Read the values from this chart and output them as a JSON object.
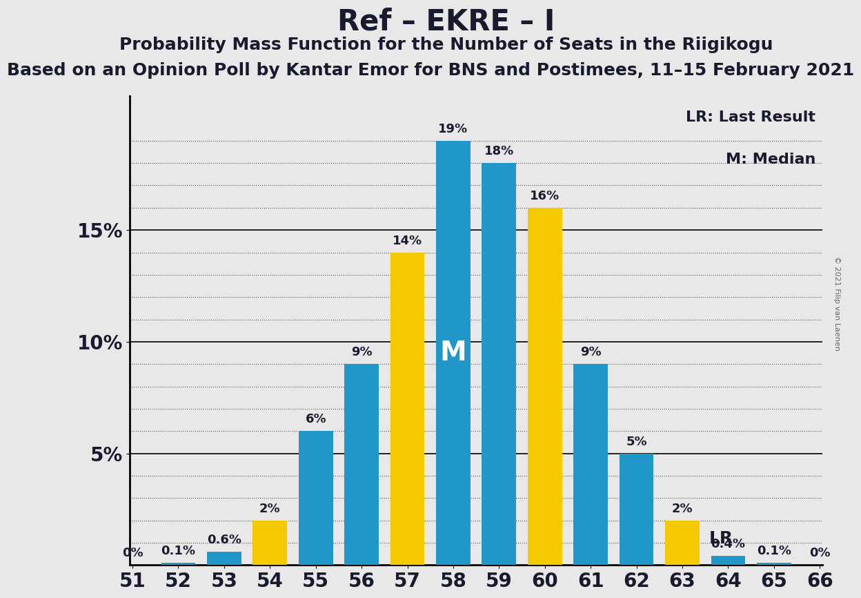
{
  "title": "Ref – EKRE – I",
  "subtitle1": "Probability Mass Function for the Number of Seats in the Riigikogu",
  "subtitle2": "Based on an Opinion Poll by Kantar Emor for BNS and Postimees, 11–15 February 2021",
  "copyright": "© 2021 Filip van Laenen",
  "seats": [
    51,
    52,
    53,
    54,
    55,
    56,
    57,
    58,
    59,
    60,
    61,
    62,
    63,
    64,
    65,
    66
  ],
  "blue_values": [
    0.0,
    0.1,
    0.6,
    0.0,
    6.0,
    9.0,
    0.0,
    19.0,
    18.0,
    0.0,
    9.0,
    5.0,
    0.0,
    0.4,
    0.1,
    0.0
  ],
  "yellow_values": [
    0.0,
    0.0,
    0.0,
    2.0,
    0.0,
    0.0,
    14.0,
    0.0,
    0.0,
    16.0,
    0.0,
    0.0,
    2.0,
    0.0,
    0.0,
    0.0
  ],
  "blue_labels": [
    "0%",
    "0.1%",
    "0.6%",
    "",
    "6%",
    "9%",
    "",
    "19%",
    "18%",
    "",
    "9%",
    "5%",
    "",
    "0.4%",
    "0.1%",
    "0%"
  ],
  "yellow_labels": [
    "",
    "",
    "",
    "2%",
    "",
    "",
    "14%",
    "",
    "",
    "16%",
    "",
    "",
    "2%",
    "",
    "",
    ""
  ],
  "blue_color": "#2196c8",
  "yellow_color": "#f5c800",
  "background_color": "#e8e8e8",
  "text_color": "#1a1a2e",
  "median_seat": 58,
  "median_label": "M",
  "lr_seat": 63,
  "lr_label": "LR",
  "legend_lr": "LR: Last Result",
  "legend_m": "M: Median",
  "ylim": [
    0,
    21
  ],
  "yticks": [
    5,
    10,
    15
  ],
  "ytick_labels": [
    "5%",
    "10%",
    "15%"
  ],
  "solid_gridlines": [
    5,
    10,
    15
  ],
  "dotted_gridlines_per_interval": 4,
  "title_fontsize": 30,
  "subtitle1_fontsize": 18,
  "subtitle2_fontsize": 18,
  "label_fontsize": 13,
  "tick_fontsize": 20,
  "legend_fontsize": 16,
  "bar_width": 0.75
}
